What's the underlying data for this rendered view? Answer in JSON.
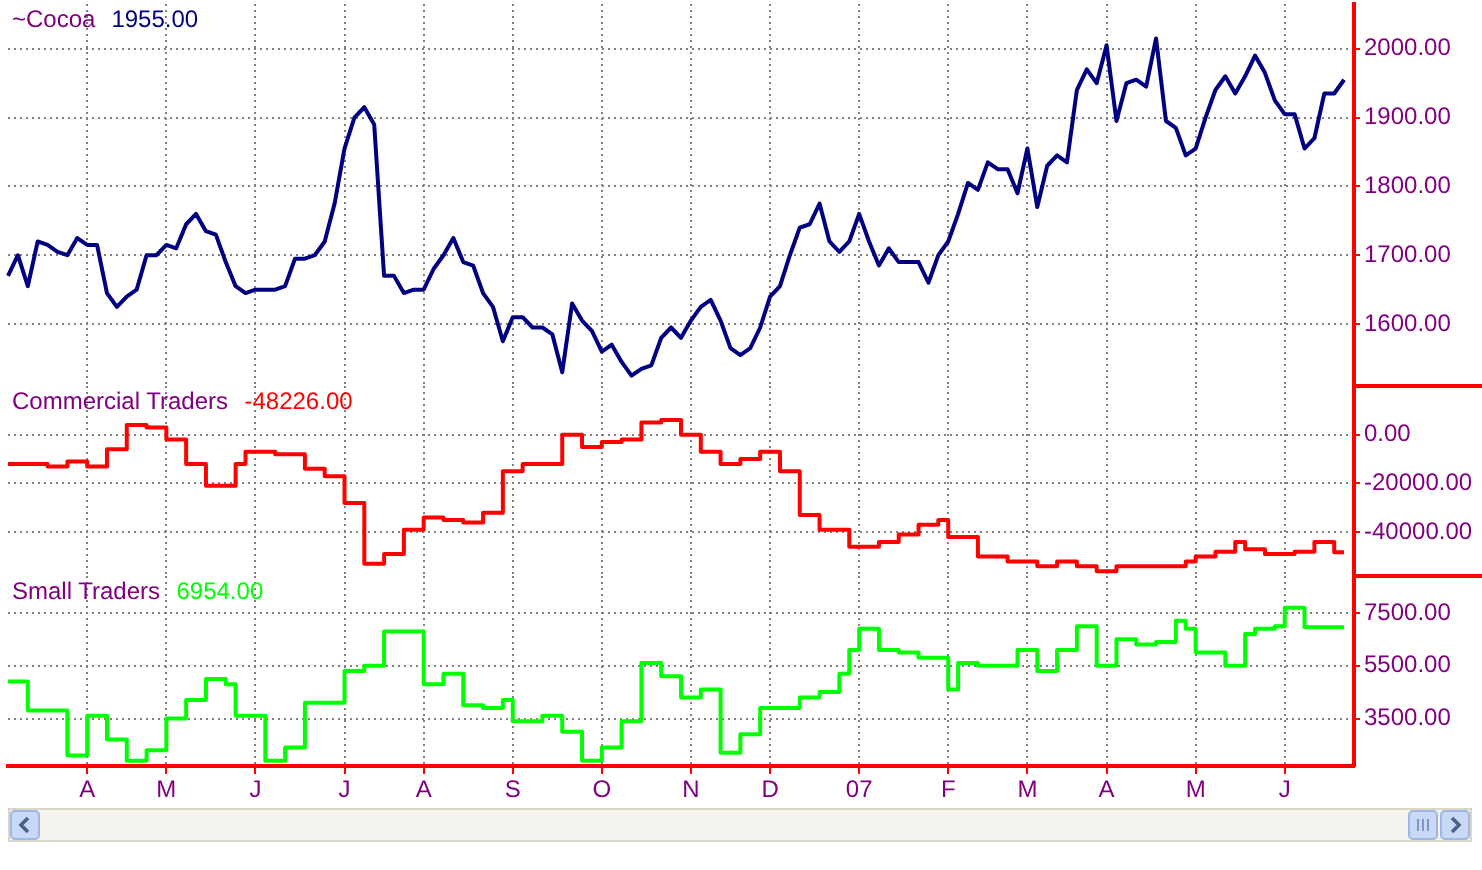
{
  "chart_data": [
    {
      "type": "line",
      "title": "~Cocoa",
      "annotations": [
        "1955.00"
      ],
      "color": "#000080",
      "tick_labels": "y",
      "grid": true,
      "categories": [
        null,
        null,
        null,
        null,
        null,
        null,
        null,
        null,
        null,
        null,
        null,
        null,
        null,
        null,
        null,
        null,
        null,
        null,
        null,
        null,
        null,
        null,
        null,
        null,
        null,
        null,
        null,
        null,
        null,
        null,
        null,
        null,
        null,
        null,
        null,
        null,
        null,
        null,
        null,
        null,
        null,
        null,
        null,
        null,
        null,
        null,
        null,
        null,
        null,
        null,
        null,
        null,
        null,
        null,
        null,
        null,
        null,
        null,
        null,
        null,
        null,
        null,
        null,
        null,
        null,
        null,
        null,
        null,
        null,
        null,
        null,
        null,
        null,
        null,
        null,
        null,
        null,
        null,
        null,
        null,
        null,
        null,
        null,
        null,
        null,
        null,
        null,
        null,
        null,
        null,
        null,
        null,
        null,
        null,
        null,
        null,
        null,
        null,
        null,
        null,
        null,
        null,
        null,
        null,
        null,
        null,
        null,
        null,
        null,
        null,
        null,
        null,
        null,
        null,
        null,
        null,
        null,
        null,
        null,
        null,
        null,
        null,
        null,
        null,
        null,
        null,
        null,
        null,
        null,
        null,
        null,
        null,
        null,
        null,
        null,
        null,
        null
      ],
      "ylim": [
        1510,
        2065
      ],
      "yticks": [
        {
          "value": 1600,
          "label": "1600.00"
        },
        {
          "value": 1700,
          "label": "1700.00"
        },
        {
          "value": 1800,
          "label": "1800.00"
        },
        {
          "value": 1900,
          "label": "1900.00"
        },
        {
          "value": 2000,
          "label": "2000.00"
        }
      ],
      "values": [
        1670,
        1700,
        1655,
        1720,
        1715,
        1705,
        1700,
        1725,
        1715,
        1715,
        1645,
        1625,
        1640,
        1650,
        1700,
        1700,
        1715,
        1710,
        1745,
        1760,
        1735,
        1730,
        1690,
        1655,
        1645,
        1650,
        1650,
        1650,
        1655,
        1695,
        1695,
        1700,
        1720,
        1775,
        1855,
        1900,
        1915,
        1890,
        1670,
        1670,
        1645,
        1650,
        1650,
        1680,
        1700,
        1725,
        1690,
        1685,
        1645,
        1625,
        1575,
        1610,
        1610,
        1595,
        1595,
        1585,
        1530,
        1630,
        1605,
        1590,
        1560,
        1570,
        1545,
        1525,
        1535,
        1540,
        1580,
        1595,
        1580,
        1605,
        1625,
        1635,
        1605,
        1565,
        1555,
        1565,
        1595,
        1640,
        1655,
        1700,
        1740,
        1745,
        1775,
        1720,
        1705,
        1720,
        1760,
        1720,
        1685,
        1710,
        1690,
        1690,
        1690,
        1660,
        1700,
        1720,
        1760,
        1805,
        1795,
        1835,
        1825,
        1825,
        1790,
        1855,
        1770,
        1830,
        1845,
        1835,
        1940,
        1970,
        1950,
        2005,
        1895,
        1950,
        1955,
        1945,
        2015,
        1895,
        1885,
        1845,
        1855,
        1900,
        1940,
        1960,
        1935,
        1960,
        1990,
        1965,
        1925,
        1905,
        1905,
        1855,
        1870,
        1935,
        1935,
        1955,
        null
      ]
    },
    {
      "type": "step",
      "title": "Commercial Traders",
      "annotations": [
        "-48226.00"
      ],
      "color": "#ff0000",
      "tick_labels": "y",
      "grid": true,
      "categories": [
        null,
        null,
        null,
        null,
        null,
        null,
        null,
        null,
        null,
        null,
        null,
        null,
        null,
        null,
        null,
        null,
        null,
        null,
        null,
        null,
        null,
        null,
        null,
        null,
        null,
        null,
        null,
        null,
        null,
        null,
        null,
        null,
        null,
        null,
        null,
        null,
        null,
        null,
        null,
        null,
        null,
        null,
        null,
        null,
        null,
        null,
        null,
        null,
        null,
        null,
        null,
        null,
        null,
        null,
        null,
        null,
        null,
        null,
        null,
        null,
        null,
        null,
        null,
        null,
        null,
        null,
        null,
        null,
        null,
        null,
        null,
        null,
        null,
        null,
        null,
        null,
        null,
        null,
        null,
        null,
        null,
        null,
        null,
        null,
        null,
        null,
        null,
        null,
        null,
        null,
        null,
        null,
        null,
        null,
        null,
        null,
        null,
        null,
        null,
        null,
        null,
        null,
        null,
        null,
        null,
        null,
        null,
        null,
        null,
        null,
        null,
        null,
        null,
        null,
        null,
        null,
        null,
        null,
        null,
        null,
        null,
        null,
        null,
        null,
        null,
        null,
        null,
        null,
        null,
        null,
        null,
        null,
        null,
        null,
        null,
        null,
        null
      ],
      "ylim": [
        -58000,
        20000
      ],
      "yticks": [
        {
          "value": -40000,
          "label": "-40000.00"
        },
        {
          "value": -20000,
          "label": "-20000.00"
        },
        {
          "value": 0,
          "label": "0.00"
        }
      ],
      "values": [
        -12000,
        -12000,
        -12000,
        -12000,
        -13000,
        -13000,
        -11000,
        -11000,
        -13000,
        -13000,
        -6000,
        -6000,
        4000,
        4000,
        3000,
        3000,
        -2000,
        -2000,
        -12000,
        -12000,
        -21000,
        -21000,
        -21000,
        -12000,
        -7000,
        -7000,
        -7000,
        -8000,
        -8000,
        -8000,
        -14000,
        -14000,
        -17000,
        -17000,
        -28000,
        -28000,
        -53000,
        -53000,
        -49000,
        -49000,
        -39000,
        -39000,
        -34000,
        -34000,
        -35000,
        -35000,
        -36000,
        -36000,
        -32000,
        -32000,
        -15000,
        -15000,
        -12000,
        -12000,
        -12000,
        -12000,
        0,
        0,
        -5000,
        -5000,
        -3000,
        -3000,
        -2000,
        -2000,
        5000,
        5000,
        6000,
        6000,
        0,
        0,
        -7000,
        -7000,
        -12000,
        -12000,
        -10000,
        -10000,
        -7000,
        -7000,
        -15000,
        -15000,
        -33000,
        -33000,
        -39000,
        -39000,
        -39000,
        -46000,
        -46000,
        -46000,
        -44000,
        -44000,
        -41000,
        -41000,
        -37000,
        -37000,
        -35000,
        -42000,
        -42000,
        -42000,
        -50000,
        -50000,
        -50000,
        -52000,
        -52000,
        -52000,
        -54000,
        -54000,
        -52000,
        -52000,
        -54000,
        -54000,
        -56000,
        -56000,
        -54000,
        -54000,
        -54000,
        -54000,
        -54000,
        -54000,
        -54000,
        -52000,
        -50000,
        -50000,
        -48000,
        -48000,
        -44000,
        -47000,
        -47000,
        -49000,
        -49000,
        -49000,
        -48000,
        -48000,
        -44000,
        -44000,
        -48226,
        -48226,
        null
      ]
    },
    {
      "type": "step",
      "title": "Small Traders",
      "annotations": [
        "6954.00"
      ],
      "color": "#00ff00",
      "grid": true,
      "categories": [
        null,
        null,
        null,
        null,
        null,
        null,
        null,
        null,
        "A",
        null,
        null,
        null,
        null,
        null,
        null,
        null,
        "M",
        null,
        null,
        null,
        null,
        null,
        null,
        null,
        null,
        "J",
        null,
        null,
        null,
        null,
        null,
        null,
        null,
        null,
        "J",
        null,
        null,
        null,
        null,
        null,
        null,
        null,
        "A",
        null,
        null,
        null,
        null,
        null,
        null,
        null,
        null,
        "S",
        null,
        null,
        null,
        null,
        null,
        null,
        null,
        null,
        "O",
        null,
        null,
        null,
        null,
        null,
        null,
        null,
        null,
        "N",
        null,
        null,
        null,
        null,
        null,
        null,
        null,
        "D",
        null,
        null,
        null,
        null,
        null,
        null,
        null,
        null,
        "07",
        null,
        null,
        null,
        null,
        null,
        null,
        null,
        null,
        "F",
        null,
        null,
        null,
        null,
        null,
        null,
        null,
        "M",
        null,
        null,
        null,
        null,
        null,
        null,
        null,
        "A",
        null,
        null,
        null,
        null,
        null,
        null,
        null,
        null,
        "M",
        null,
        null,
        null,
        null,
        null,
        null,
        null,
        null,
        "J",
        null,
        null,
        null,
        null,
        null,
        null,
        null
      ],
      "ylim": [
        1700,
        8900
      ],
      "yticks": [
        {
          "value": 3500,
          "label": "3500.00"
        },
        {
          "value": 5500,
          "label": "5500.00"
        },
        {
          "value": 7500,
          "label": "7500.00"
        }
      ],
      "values": [
        4900,
        4900,
        3800,
        3800,
        3800,
        3800,
        2100,
        2100,
        3600,
        3600,
        2700,
        2700,
        1900,
        1900,
        2300,
        2300,
        3500,
        3500,
        4200,
        4200,
        5000,
        5000,
        4800,
        3600,
        3600,
        3600,
        1900,
        1900,
        2400,
        2400,
        4100,
        4100,
        4100,
        4100,
        5300,
        5300,
        5500,
        5500,
        6800,
        6800,
        6800,
        6800,
        4800,
        4800,
        5200,
        5200,
        4000,
        4000,
        3900,
        3900,
        4200,
        3400,
        3400,
        3400,
        3600,
        3600,
        3000,
        3000,
        1900,
        1900,
        2400,
        2400,
        3400,
        3400,
        5600,
        5600,
        5100,
        5100,
        4300,
        4300,
        4600,
        4600,
        2200,
        2200,
        2900,
        2900,
        3900,
        3900,
        3900,
        3900,
        4300,
        4300,
        4500,
        4500,
        5200,
        6100,
        6900,
        6900,
        6100,
        6100,
        6000,
        6000,
        5800,
        5800,
        5800,
        4600,
        5600,
        5600,
        5500,
        5500,
        5500,
        5500,
        6100,
        6100,
        5300,
        5300,
        6100,
        6100,
        7000,
        7000,
        5500,
        5500,
        6500,
        6500,
        6300,
        6300,
        6400,
        6400,
        7200,
        6900,
        6000,
        6000,
        6000,
        5500,
        5500,
        6700,
        6900,
        6900,
        7000,
        7700,
        7700,
        6954,
        6954,
        6954,
        6954,
        6954,
        null
      ]
    }
  ]
}
